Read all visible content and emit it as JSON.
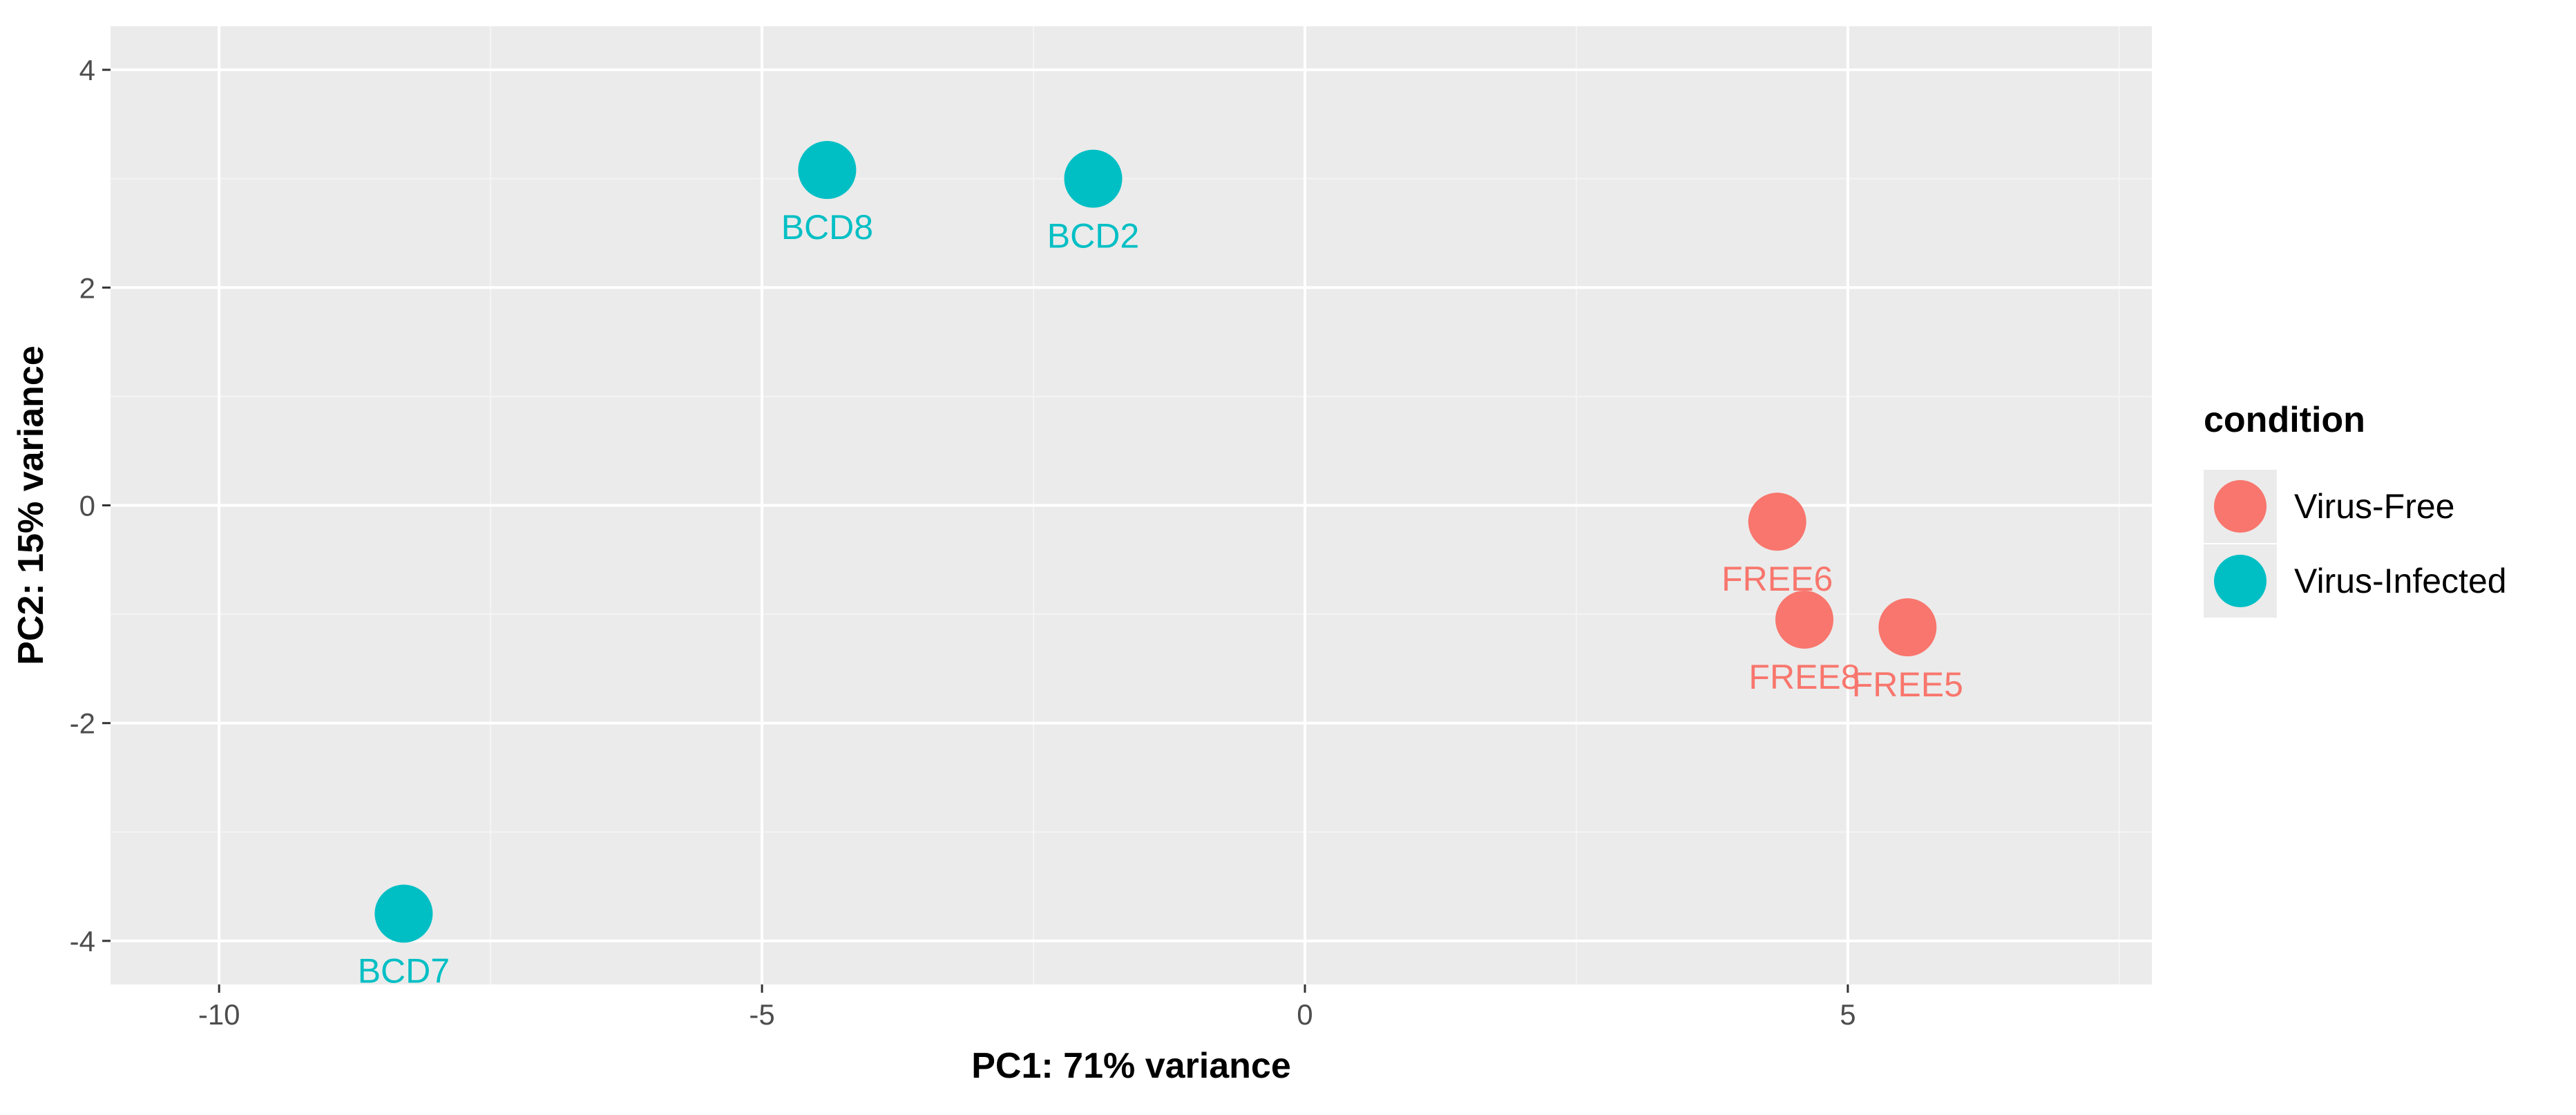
{
  "chart_data": {
    "type": "scatter",
    "xlabel": "PC1: 71% variance",
    "ylabel": "PC2: 15% variance",
    "xlim": [
      -11,
      7.8
    ],
    "ylim": [
      -4.4,
      4.4
    ],
    "x_ticks": [
      -10,
      -5,
      0,
      5
    ],
    "x_tick_labels": [
      "-10",
      "-5",
      "0",
      "5"
    ],
    "y_ticks": [
      -4,
      -2,
      0,
      2,
      4
    ],
    "y_tick_labels": [
      "-4",
      "-2",
      "0",
      "2",
      "4"
    ],
    "grid": true,
    "legend": {
      "title": "condition",
      "position": "right",
      "entries": [
        {
          "label": "Virus-Free",
          "color": "#F8766D"
        },
        {
          "label": "Virus-Infected",
          "color": "#00BFC4"
        }
      ]
    },
    "series": [
      {
        "name": "Virus-Free",
        "color": "#F8766D",
        "points": [
          {
            "x": 4.35,
            "y": -0.15,
            "label": "FREE6"
          },
          {
            "x": 4.6,
            "y": -1.05,
            "label": "FREE8"
          },
          {
            "x": 5.55,
            "y": -1.12,
            "label": "FREE5"
          }
        ]
      },
      {
        "name": "Virus-Infected",
        "color": "#00BFC4",
        "points": [
          {
            "x": -4.4,
            "y": 3.08,
            "label": "BCD8"
          },
          {
            "x": -1.95,
            "y": 3.0,
            "label": "BCD2"
          },
          {
            "x": -8.3,
            "y": -3.75,
            "label": "BCD7"
          }
        ]
      }
    ]
  }
}
